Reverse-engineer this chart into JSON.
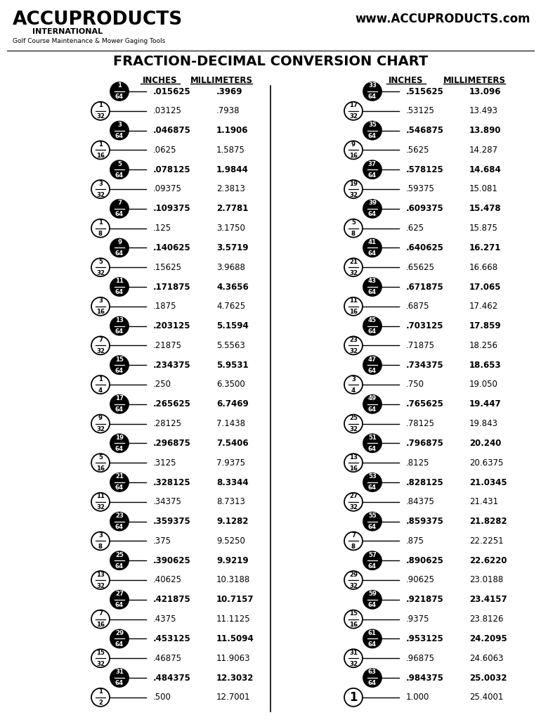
{
  "title": "FRACTION-DECIMAL CONVERSION CHART",
  "company_name": "ACCUPRODUCTS",
  "company_sub": "INTERNATIONAL",
  "company_tagline": "Golf Course Maintenance & Mower Gaging Tools",
  "website": "www.ACCUPRODUCTS.com",
  "rows": [
    {
      "num": "1",
      "den": "64",
      "black": true,
      "inches": ".015625",
      "mm": ".3969",
      "bold": true
    },
    {
      "num": "1",
      "den": "32",
      "black": false,
      "inches": ".03125",
      "mm": ".7938",
      "bold": false
    },
    {
      "num": "3",
      "den": "64",
      "black": true,
      "inches": ".046875",
      "mm": "1.1906",
      "bold": true
    },
    {
      "num": "1",
      "den": "16",
      "black": false,
      "inches": ".0625",
      "mm": "1.5875",
      "bold": false
    },
    {
      "num": "5",
      "den": "64",
      "black": true,
      "inches": ".078125",
      "mm": "1.9844",
      "bold": true
    },
    {
      "num": "3",
      "den": "32",
      "black": false,
      "inches": ".09375",
      "mm": "2.3813",
      "bold": false
    },
    {
      "num": "7",
      "den": "64",
      "black": true,
      "inches": ".109375",
      "mm": "2.7781",
      "bold": true
    },
    {
      "num": "1",
      "den": "8",
      "black": false,
      "inches": ".125",
      "mm": "3.1750",
      "bold": false
    },
    {
      "num": "9",
      "den": "64",
      "black": true,
      "inches": ".140625",
      "mm": "3.5719",
      "bold": true
    },
    {
      "num": "5",
      "den": "32",
      "black": false,
      "inches": ".15625",
      "mm": "3.9688",
      "bold": false
    },
    {
      "num": "11",
      "den": "64",
      "black": true,
      "inches": ".171875",
      "mm": "4.3656",
      "bold": true
    },
    {
      "num": "3",
      "den": "16",
      "black": false,
      "inches": ".1875",
      "mm": "4.7625",
      "bold": false
    },
    {
      "num": "13",
      "den": "64",
      "black": true,
      "inches": ".203125",
      "mm": "5.1594",
      "bold": true
    },
    {
      "num": "7",
      "den": "32",
      "black": false,
      "inches": ".21875",
      "mm": "5.5563",
      "bold": false
    },
    {
      "num": "15",
      "den": "64",
      "black": true,
      "inches": ".234375",
      "mm": "5.9531",
      "bold": true
    },
    {
      "num": "1",
      "den": "4",
      "black": false,
      "inches": ".250",
      "mm": "6.3500",
      "bold": false
    },
    {
      "num": "17",
      "den": "64",
      "black": true,
      "inches": ".265625",
      "mm": "6.7469",
      "bold": true
    },
    {
      "num": "9",
      "den": "32",
      "black": false,
      "inches": ".28125",
      "mm": "7.1438",
      "bold": false
    },
    {
      "num": "19",
      "den": "64",
      "black": true,
      "inches": ".296875",
      "mm": "7.5406",
      "bold": true
    },
    {
      "num": "5",
      "den": "16",
      "black": false,
      "inches": ".3125",
      "mm": "7.9375",
      "bold": false
    },
    {
      "num": "21",
      "den": "64",
      "black": true,
      "inches": ".328125",
      "mm": "8.3344",
      "bold": true
    },
    {
      "num": "11",
      "den": "32",
      "black": false,
      "inches": ".34375",
      "mm": "8.7313",
      "bold": false
    },
    {
      "num": "23",
      "den": "64",
      "black": true,
      "inches": ".359375",
      "mm": "9.1282",
      "bold": true
    },
    {
      "num": "3",
      "den": "8",
      "black": false,
      "inches": ".375",
      "mm": "9.5250",
      "bold": false
    },
    {
      "num": "25",
      "den": "64",
      "black": true,
      "inches": ".390625",
      "mm": "9.9219",
      "bold": true
    },
    {
      "num": "13",
      "den": "32",
      "black": false,
      "inches": ".40625",
      "mm": "10.3188",
      "bold": false
    },
    {
      "num": "27",
      "den": "64",
      "black": true,
      "inches": ".421875",
      "mm": "10.7157",
      "bold": true
    },
    {
      "num": "7",
      "den": "16",
      "black": false,
      "inches": ".4375",
      "mm": "11.1125",
      "bold": false
    },
    {
      "num": "29",
      "den": "64",
      "black": true,
      "inches": ".453125",
      "mm": "11.5094",
      "bold": true
    },
    {
      "num": "15",
      "den": "32",
      "black": false,
      "inches": ".46875",
      "mm": "11.9063",
      "bold": false
    },
    {
      "num": "31",
      "den": "64",
      "black": true,
      "inches": ".484375",
      "mm": "12.3032",
      "bold": true
    },
    {
      "num": "1",
      "den": "2",
      "black": false,
      "inches": ".500",
      "mm": "12.7001",
      "bold": false
    }
  ],
  "rows2": [
    {
      "num": "33",
      "den": "64",
      "black": true,
      "inches": ".515625",
      "mm": "13.096",
      "bold": true
    },
    {
      "num": "17",
      "den": "32",
      "black": false,
      "inches": ".53125",
      "mm": "13.493",
      "bold": false
    },
    {
      "num": "35",
      "den": "64",
      "black": true,
      "inches": ".546875",
      "mm": "13.890",
      "bold": true
    },
    {
      "num": "9",
      "den": "16",
      "black": false,
      "inches": ".5625",
      "mm": "14.287",
      "bold": false
    },
    {
      "num": "37",
      "den": "64",
      "black": true,
      "inches": ".578125",
      "mm": "14.684",
      "bold": true
    },
    {
      "num": "19",
      "den": "32",
      "black": false,
      "inches": ".59375",
      "mm": "15.081",
      "bold": false
    },
    {
      "num": "39",
      "den": "64",
      "black": true,
      "inches": ".609375",
      "mm": "15.478",
      "bold": true
    },
    {
      "num": "5",
      "den": "8",
      "black": false,
      "inches": ".625",
      "mm": "15.875",
      "bold": false
    },
    {
      "num": "41",
      "den": "64",
      "black": true,
      "inches": ".640625",
      "mm": "16.271",
      "bold": true
    },
    {
      "num": "21",
      "den": "32",
      "black": false,
      "inches": ".65625",
      "mm": "16.668",
      "bold": false
    },
    {
      "num": "43",
      "den": "64",
      "black": true,
      "inches": ".671875",
      "mm": "17.065",
      "bold": true
    },
    {
      "num": "11",
      "den": "16",
      "black": false,
      "inches": ".6875",
      "mm": "17.462",
      "bold": false
    },
    {
      "num": "45",
      "den": "64",
      "black": true,
      "inches": ".703125",
      "mm": "17.859",
      "bold": true
    },
    {
      "num": "23",
      "den": "32",
      "black": false,
      "inches": ".71875",
      "mm": "18.256",
      "bold": false
    },
    {
      "num": "47",
      "den": "64",
      "black": true,
      "inches": ".734375",
      "mm": "18.653",
      "bold": true
    },
    {
      "num": "3",
      "den": "4",
      "black": false,
      "inches": ".750",
      "mm": "19.050",
      "bold": false
    },
    {
      "num": "49",
      "den": "64",
      "black": true,
      "inches": ".765625",
      "mm": "19.447",
      "bold": true
    },
    {
      "num": "25",
      "den": "32",
      "black": false,
      "inches": ".78125",
      "mm": "19.843",
      "bold": false
    },
    {
      "num": "51",
      "den": "64",
      "black": true,
      "inches": ".796875",
      "mm": "20.240",
      "bold": true
    },
    {
      "num": "13",
      "den": "16",
      "black": false,
      "inches": ".8125",
      "mm": "20.6375",
      "bold": false
    },
    {
      "num": "53",
      "den": "64",
      "black": true,
      "inches": ".828125",
      "mm": "21.0345",
      "bold": true
    },
    {
      "num": "27",
      "den": "32",
      "black": false,
      "inches": ".84375",
      "mm": "21.431",
      "bold": false
    },
    {
      "num": "55",
      "den": "64",
      "black": true,
      "inches": ".859375",
      "mm": "21.8282",
      "bold": true
    },
    {
      "num": "7",
      "den": "8",
      "black": false,
      "inches": ".875",
      "mm": "22.2251",
      "bold": false
    },
    {
      "num": "57",
      "den": "64",
      "black": true,
      "inches": ".890625",
      "mm": "22.6220",
      "bold": true
    },
    {
      "num": "29",
      "den": "32",
      "black": false,
      "inches": ".90625",
      "mm": "23.0188",
      "bold": false
    },
    {
      "num": "59",
      "den": "64",
      "black": true,
      "inches": ".921875",
      "mm": "23.4157",
      "bold": true
    },
    {
      "num": "15",
      "den": "16",
      "black": false,
      "inches": ".9375",
      "mm": "23.8126",
      "bold": false
    },
    {
      "num": "61",
      "den": "64",
      "black": true,
      "inches": ".953125",
      "mm": "24.2095",
      "bold": true
    },
    {
      "num": "31",
      "den": "32",
      "black": false,
      "inches": ".96875",
      "mm": "24.6063",
      "bold": false
    },
    {
      "num": "63",
      "den": "64",
      "black": true,
      "inches": ".984375",
      "mm": "25.0032",
      "bold": true
    },
    {
      "num": "1",
      "den": "",
      "black": false,
      "inches": "1.000",
      "mm": "25.4001",
      "bold": false
    }
  ]
}
